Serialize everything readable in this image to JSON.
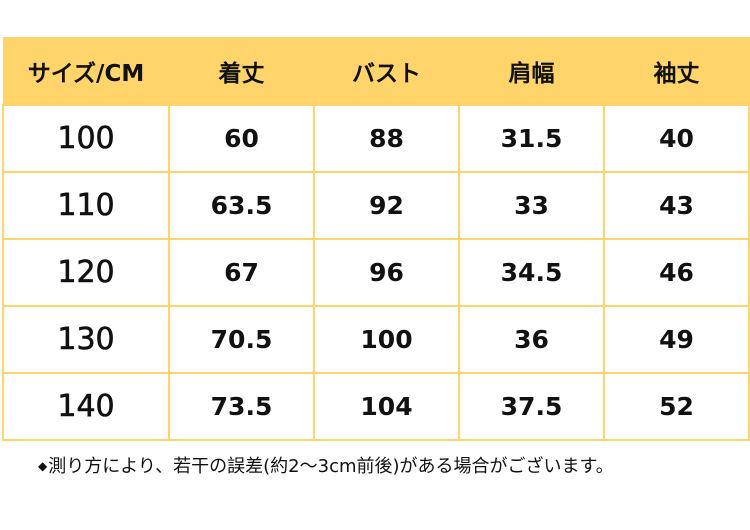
{
  "table": {
    "headers": [
      "サイズ/CM",
      "着丈",
      "バスト",
      "肩幅",
      "袖丈"
    ],
    "rows": [
      [
        "100",
        "60",
        "88",
        "31.5",
        "40"
      ],
      [
        "110",
        "63.5",
        "92",
        "33",
        "43"
      ],
      [
        "120",
        "67",
        "96",
        "34.5",
        "46"
      ],
      [
        "130",
        "70.5",
        "100",
        "36",
        "49"
      ],
      [
        "140",
        "73.5",
        "104",
        "37.5",
        "52"
      ]
    ]
  },
  "note": {
    "bullet": "◆",
    "text": "測り方により、若干の誤差(約2～3cm前後)がある場合がございます。"
  },
  "colors": {
    "header_bg": "#ffd56b",
    "border": "#ffd56b",
    "text": "#111111"
  }
}
